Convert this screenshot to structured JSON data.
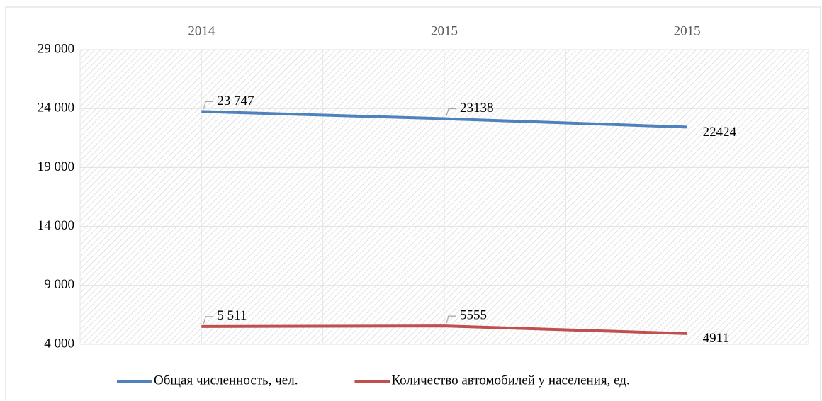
{
  "chart_data": {
    "type": "line",
    "categories": [
      "2014",
      "2015",
      "2015"
    ],
    "series": [
      {
        "name": "Общая численность, чел.",
        "color": "#4f81bd",
        "values": [
          23747,
          23138,
          22424
        ],
        "value_labels": [
          "23 747",
          "23138",
          "22424"
        ]
      },
      {
        "name": "Количество автомобилей у населения, ед.",
        "color": "#c0504d",
        "values": [
          5511,
          5555,
          4911
        ],
        "value_labels": [
          "5 511",
          "5555",
          "4911"
        ]
      }
    ],
    "ylim": [
      4000,
      29000
    ],
    "yticks": [
      {
        "value": 4000,
        "label": "4 000"
      },
      {
        "value": 9000,
        "label": "9 000"
      },
      {
        "value": 14000,
        "label": "14 000"
      },
      {
        "value": 19000,
        "label": "19 000"
      },
      {
        "value": 24000,
        "label": "24 000"
      },
      {
        "value": 29000,
        "label": "29 000"
      }
    ],
    "grid": true,
    "legend": "bottom"
  }
}
